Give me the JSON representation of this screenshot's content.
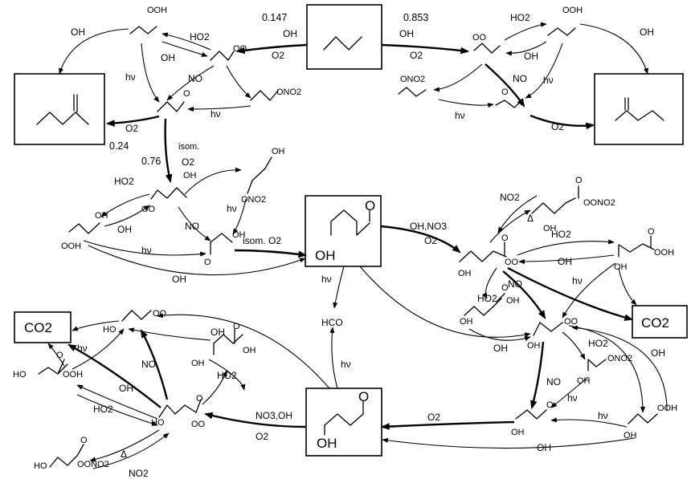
{
  "branch_left": "0.147",
  "branch_right": "0.853",
  "branch_butanal": "0.24",
  "branch_isom": "0.76",
  "r_oh": "OH",
  "r_o2": "O2",
  "r_ho2": "HO2",
  "r_no": "NO",
  "r_no2": "NO2",
  "r_hv": "hν",
  "r_isom": "isom.",
  "r_isom_o2": "isom. O2",
  "r_oh_no3": "OH,NO3",
  "r_no3_oh": "NO3,OH",
  "r_delta": "Δ",
  "s_ooh": "OOH",
  "s_oo": "OO",
  "s_o": "O",
  "s_ono2": "ONO2",
  "s_oh": "OH",
  "s_hco": "HCO",
  "s_co2": "CO2",
  "s_ho": "HO",
  "s_oono2": "OONO2"
}
